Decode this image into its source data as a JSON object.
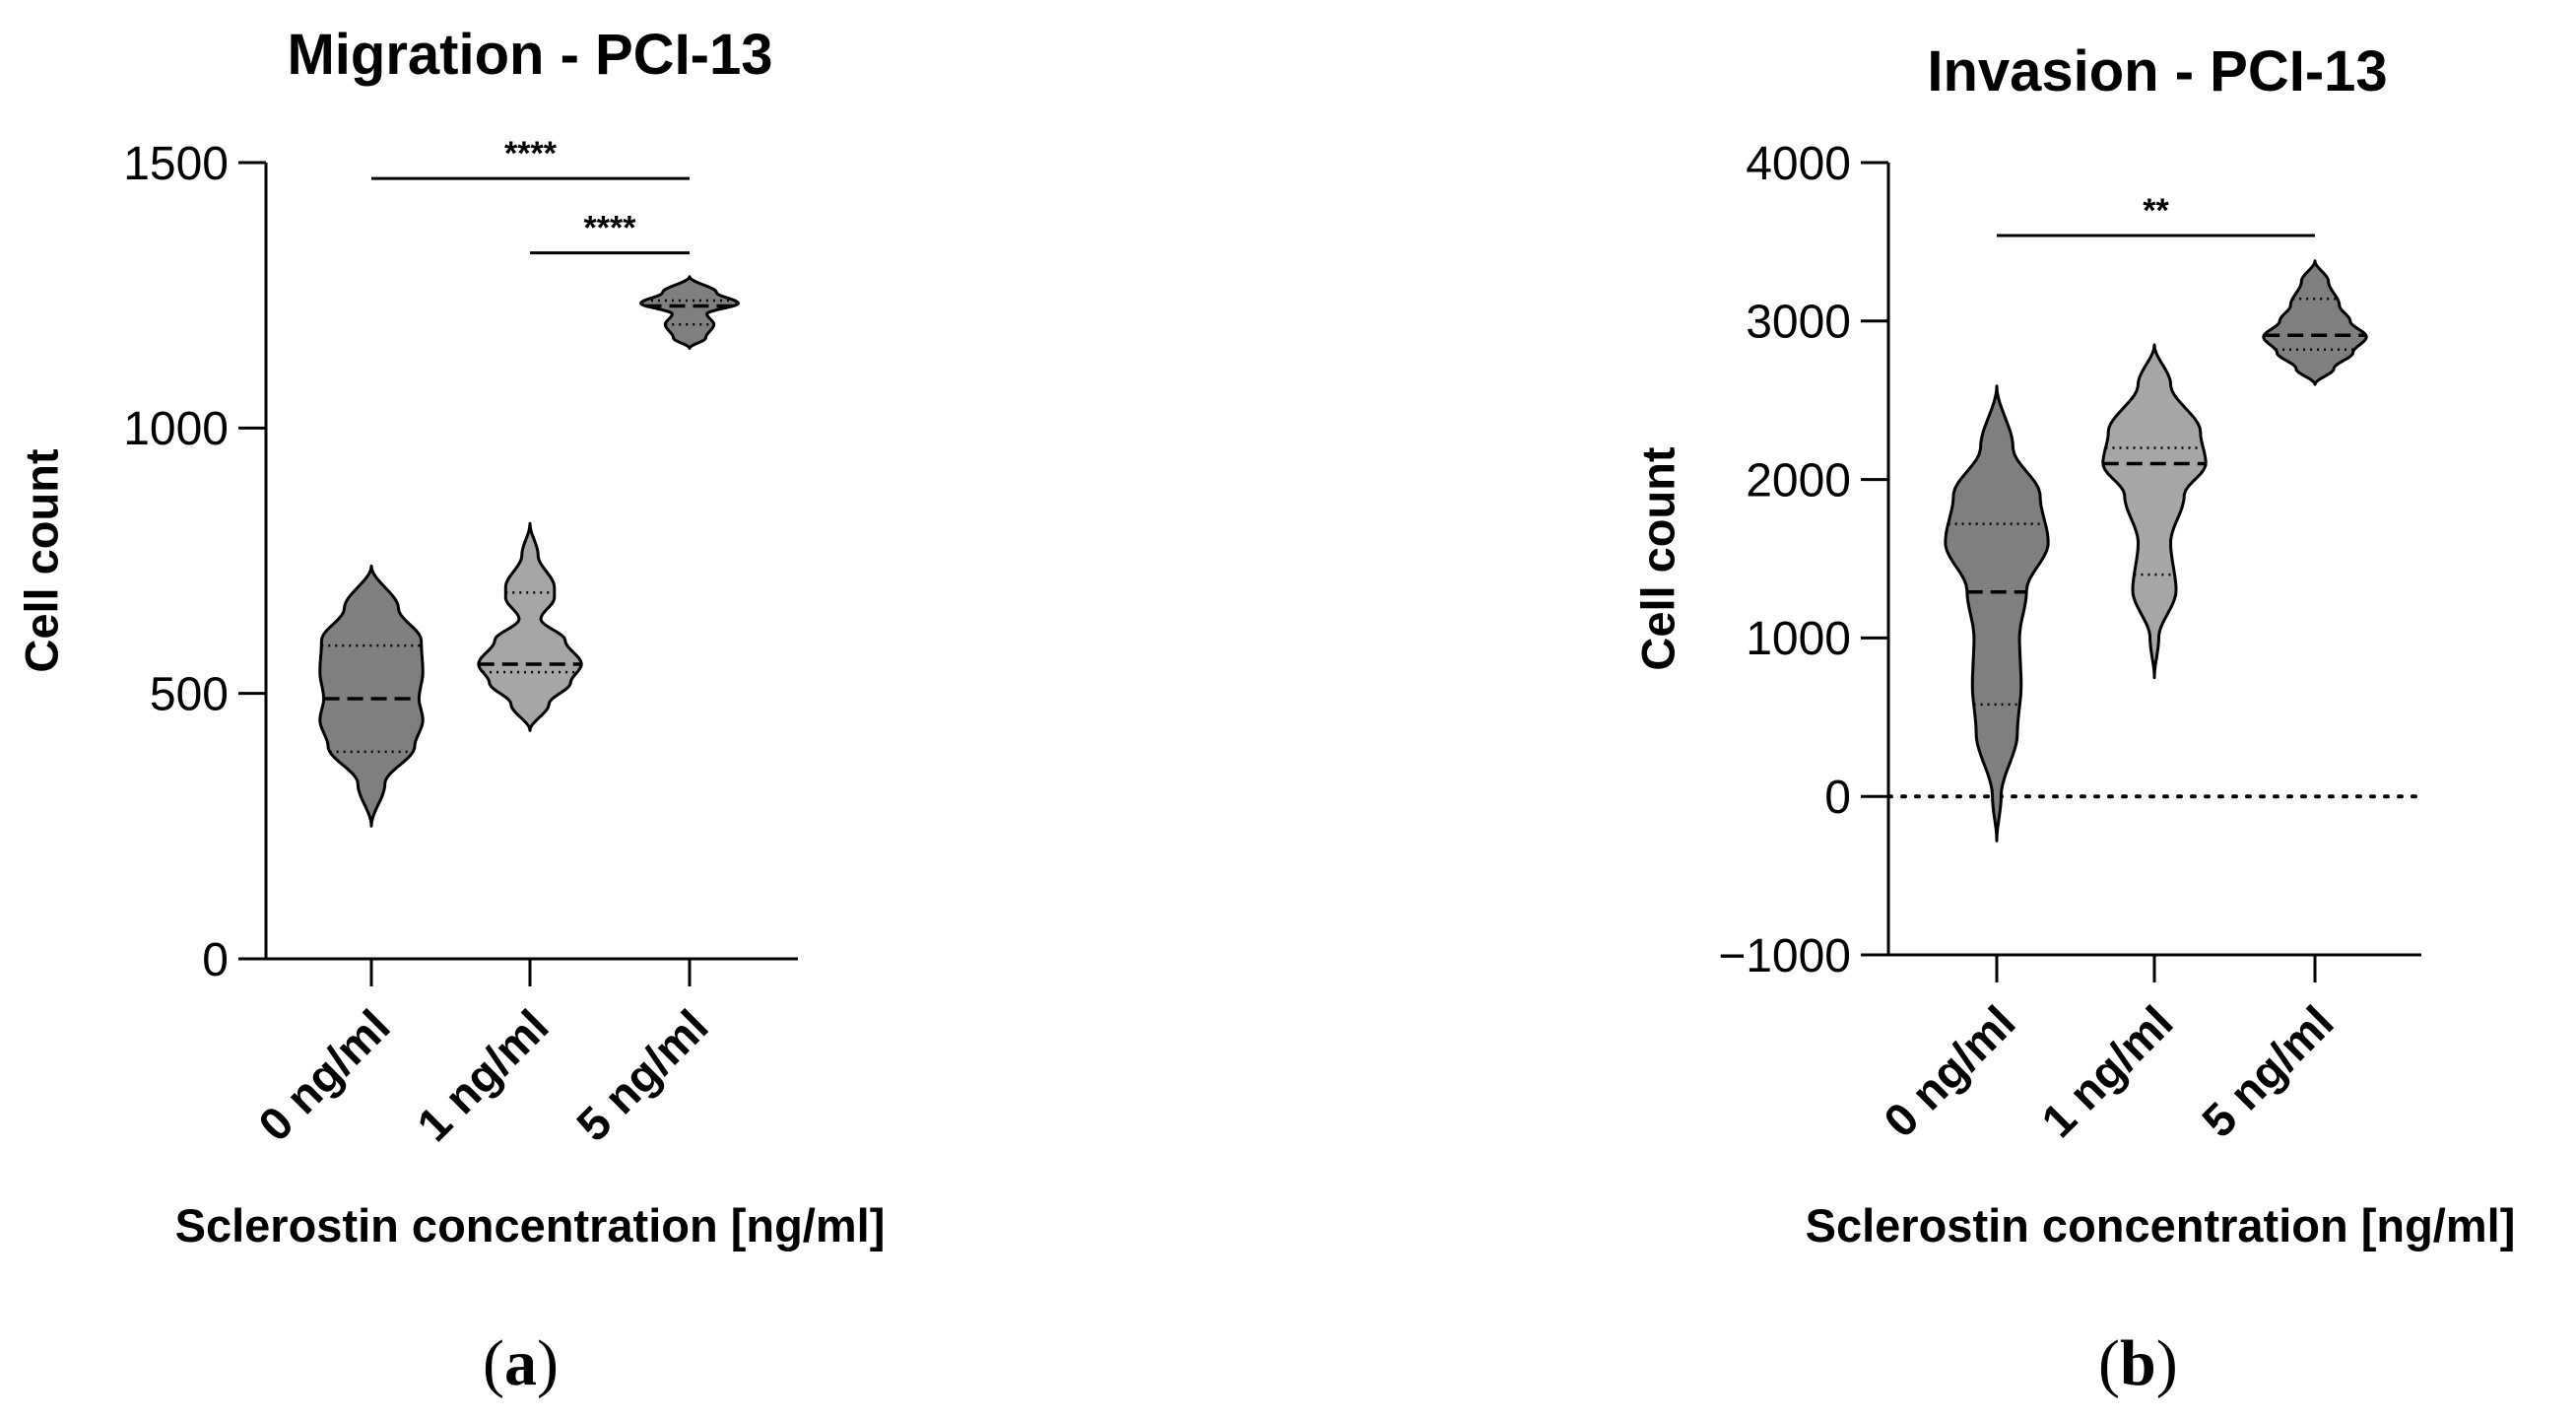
{
  "chart_data": [
    {
      "type": "violin",
      "panel": "(a)",
      "panel_letter": "a",
      "title": "Migration - PCI-13",
      "xlabel": "Sclerostin concentration [ng/ml]",
      "ylabel": "Cell count",
      "categories": [
        "0 ng/ml",
        "1 ng/ml",
        "5 ng/ml"
      ],
      "ylim": [
        0,
        1500
      ],
      "yticks": [
        0,
        500,
        1000,
        1500
      ],
      "ytick_labels": [
        "0",
        "500",
        "1000",
        "1500"
      ],
      "zero_line": false,
      "violins": [
        {
          "category": "0 ng/ml",
          "color": "#7f7f7f",
          "median": 490,
          "q1": 390,
          "q3": 590,
          "profile": [
            [
              250,
              0
            ],
            [
              330,
              0.25
            ],
            [
              400,
              0.8
            ],
            [
              450,
              0.95
            ],
            [
              490,
              0.88
            ],
            [
              540,
              0.95
            ],
            [
              600,
              0.92
            ],
            [
              660,
              0.5
            ],
            [
              740,
              0
            ]
          ]
        },
        {
          "category": "1 ng/ml",
          "color": "#a6a6a6",
          "median": 555,
          "q1": 540,
          "q3": 690,
          "profile": [
            [
              430,
              0
            ],
            [
              480,
              0.35
            ],
            [
              520,
              0.75
            ],
            [
              555,
              0.95
            ],
            [
              600,
              0.65
            ],
            [
              640,
              0.2
            ],
            [
              680,
              0.45
            ],
            [
              700,
              0.45
            ],
            [
              760,
              0.15
            ],
            [
              820,
              0
            ]
          ]
        },
        {
          "category": "5 ng/ml",
          "color": "#7f7f7f",
          "median": 1230,
          "q1": 1195,
          "q3": 1240,
          "profile": [
            [
              1150,
              0
            ],
            [
              1170,
              0.3
            ],
            [
              1195,
              0.45
            ],
            [
              1215,
              0.32
            ],
            [
              1235,
              0.9
            ],
            [
              1255,
              0.5
            ],
            [
              1285,
              0
            ]
          ]
        }
      ],
      "significance": [
        {
          "from": "0 ng/ml",
          "to": "5 ng/ml",
          "label": "****",
          "y": 1470
        },
        {
          "from": "1 ng/ml",
          "to": "5 ng/ml",
          "label": "****",
          "y": 1330
        }
      ]
    },
    {
      "type": "violin",
      "panel": "(b)",
      "panel_letter": "b",
      "title": "Invasion - PCI-13",
      "xlabel": "Sclerostin concentration [ng/ml]",
      "ylabel": "Cell count",
      "categories": [
        "0 ng/ml",
        "1 ng/ml",
        "5 ng/ml"
      ],
      "ylim": [
        -1000,
        4000
      ],
      "yticks": [
        -1000,
        0,
        1000,
        2000,
        3000,
        4000
      ],
      "ytick_labels": [
        "−1000",
        "0",
        "1000",
        "2000",
        "3000",
        "4000"
      ],
      "zero_line": true,
      "violins": [
        {
          "category": "0 ng/ml",
          "color": "#7f7f7f",
          "median": 1290,
          "q1": 580,
          "q3": 1720,
          "profile": [
            [
              -280,
              0
            ],
            [
              0,
              0.08
            ],
            [
              400,
              0.38
            ],
            [
              700,
              0.45
            ],
            [
              1000,
              0.42
            ],
            [
              1300,
              0.55
            ],
            [
              1600,
              0.95
            ],
            [
              1900,
              0.8
            ],
            [
              2200,
              0.3
            ],
            [
              2590,
              0
            ]
          ]
        },
        {
          "category": "1 ng/ml",
          "color": "#a6a6a6",
          "median": 2100,
          "q1": 1400,
          "q3": 2200,
          "profile": [
            [
              750,
              0
            ],
            [
              1000,
              0.08
            ],
            [
              1300,
              0.4
            ],
            [
              1600,
              0.3
            ],
            [
              1900,
              0.55
            ],
            [
              2100,
              0.95
            ],
            [
              2300,
              0.85
            ],
            [
              2600,
              0.3
            ],
            [
              2850,
              0
            ]
          ]
        },
        {
          "category": "5 ng/ml",
          "color": "#7f7f7f",
          "median": 2910,
          "q1": 2820,
          "q3": 3140,
          "profile": [
            [
              2600,
              0
            ],
            [
              2700,
              0.35
            ],
            [
              2800,
              0.7
            ],
            [
              2900,
              0.95
            ],
            [
              3000,
              0.65
            ],
            [
              3100,
              0.45
            ],
            [
              3250,
              0.25
            ],
            [
              3380,
              0
            ]
          ]
        }
      ],
      "significance": [
        {
          "from": "0 ng/ml",
          "to": "5 ng/ml",
          "label": "**",
          "y": 3540
        }
      ]
    }
  ]
}
